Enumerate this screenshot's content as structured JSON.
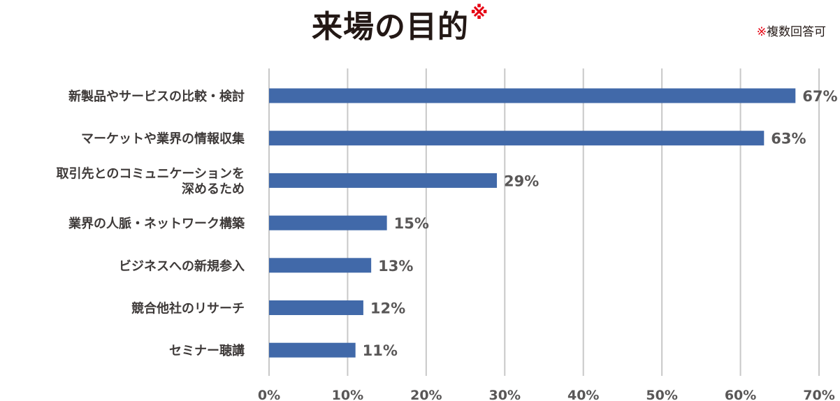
{
  "title": {
    "text": "来場の目的",
    "mark": "※"
  },
  "note": {
    "mark": "※",
    "text": "複数回答可"
  },
  "chart_data": {
    "type": "bar",
    "orientation": "horizontal",
    "title": "来場の目的",
    "categories": [
      [
        "新製品やサービスの比較・検討"
      ],
      [
        "マーケットや業界の情報収集"
      ],
      [
        "取引先とのコミュニケーションを",
        "深めるため"
      ],
      [
        "業界の人脈・ネットワーク構築"
      ],
      [
        "ビジネスへの新規参入"
      ],
      [
        "競合他社のリサーチ"
      ],
      [
        "セミナー聴講"
      ]
    ],
    "values": [
      67,
      63,
      29,
      15,
      13,
      12,
      11
    ],
    "value_labels": [
      "67%",
      "63%",
      "29%",
      "15%",
      "13%",
      "12%",
      "11%"
    ],
    "xlim": [
      0,
      70
    ],
    "x_ticks": [
      0,
      10,
      20,
      30,
      40,
      50,
      60,
      70
    ],
    "x_tick_labels": [
      "0%",
      "10%",
      "20%",
      "30%",
      "40%",
      "50%",
      "60%",
      "70%"
    ],
    "grid": true,
    "bar_color": "#4169a9",
    "grid_color": "#c8c8c8"
  }
}
